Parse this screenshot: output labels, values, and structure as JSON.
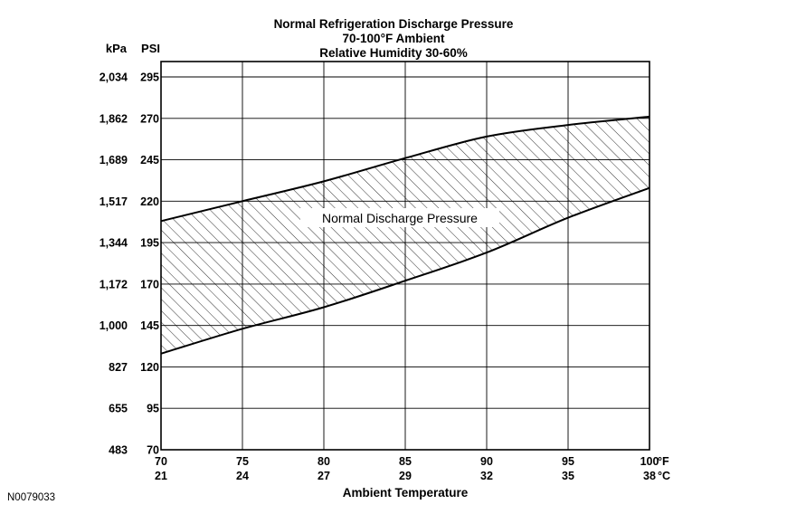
{
  "figure_id": "N0079033",
  "chart_data": {
    "type": "area",
    "title": "Normal Refrigeration Discharge Pressure",
    "subtitle_line2": "70-100°F Ambient",
    "subtitle_line3": "Relative Humidity 30-60%",
    "xlabel": "Ambient Temperature",
    "band_label": "Normal Discharge Pressure",
    "grid": true,
    "legend_position": "none",
    "hatch_style": "diagonal-backslash",
    "units": {
      "y_left": "kPa",
      "y_right": "PSI",
      "x_fahrenheit": "°F",
      "x_celsius": "°C"
    },
    "x_ticks_f": [
      70,
      75,
      80,
      85,
      90,
      95,
      100
    ],
    "x_ticks_c": [
      21,
      24,
      27,
      29,
      32,
      35,
      38
    ],
    "y_ticks_psi": [
      295,
      270,
      245,
      220,
      195,
      170,
      145,
      120,
      95,
      70
    ],
    "y_ticks_kpa": [
      "2,034",
      "1,862",
      "1,689",
      "1,517",
      "1,344",
      "1,172",
      "1,000",
      "827",
      "655",
      "483"
    ],
    "xlim_f": [
      70,
      100
    ],
    "ylim_psi": [
      70,
      295
    ],
    "series": [
      {
        "name": "upper_limit_psi",
        "x_f": [
          70,
          75,
          80,
          85,
          90,
          95,
          100
        ],
        "values": [
          208,
          220,
          232,
          246,
          259,
          266,
          271
        ]
      },
      {
        "name": "lower_limit_psi",
        "x_f": [
          70,
          75,
          80,
          85,
          90,
          95,
          100
        ],
        "values": [
          128,
          143,
          156,
          172,
          189,
          210,
          228
        ]
      }
    ]
  }
}
